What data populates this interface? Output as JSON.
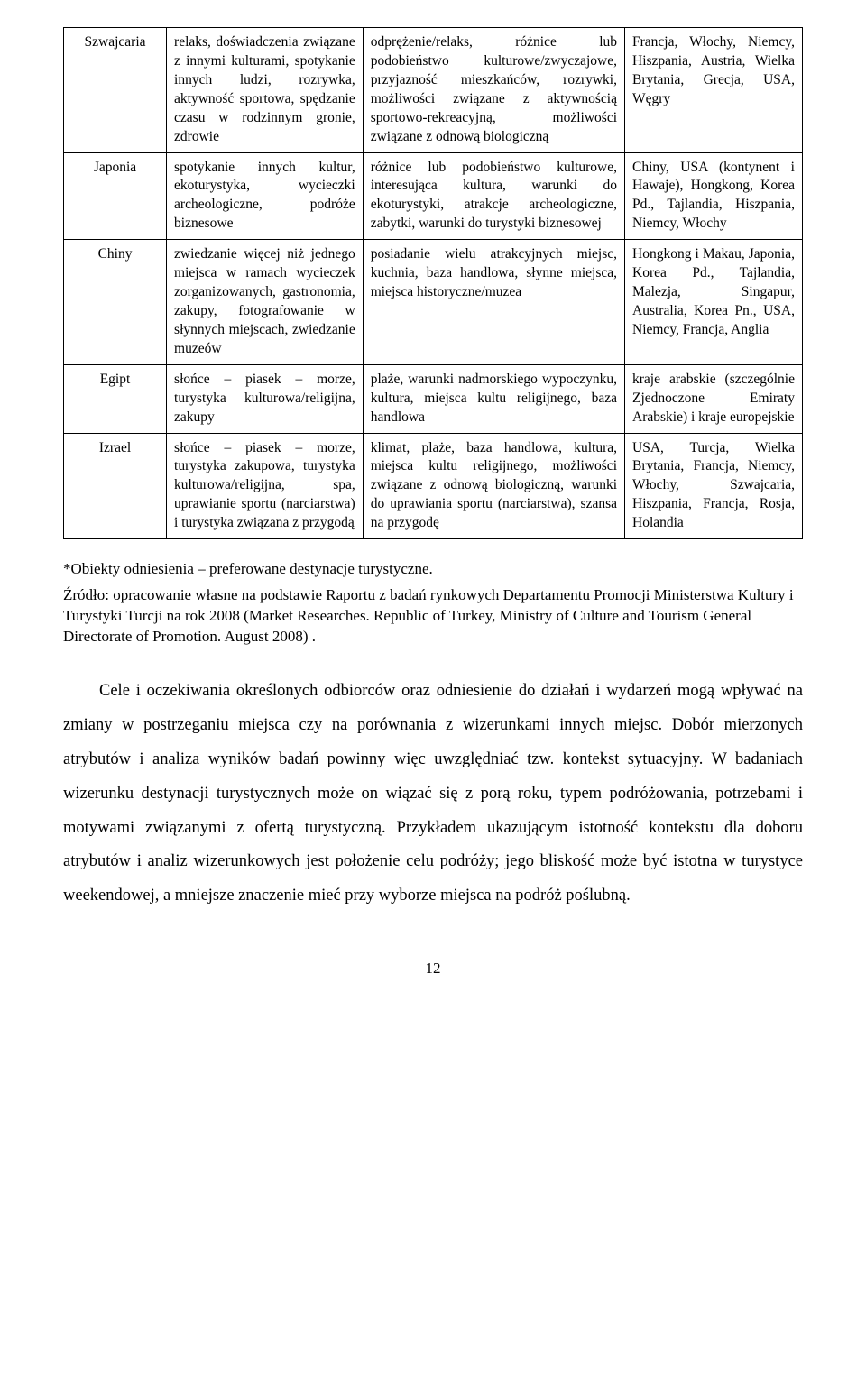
{
  "table": {
    "rows": [
      {
        "country": "Szwajcaria",
        "c2": "relaks, doświadczenia związane z innymi kulturami, spotykanie innych ludzi, rozrywka, aktywność sportowa, spędzanie czasu w rodzinnym gronie, zdrowie",
        "c3": "odprężenie/relaks, różnice lub podobieństwo kulturowe/zwyczajowe, przyjazność mieszkańców, rozrywki, możliwości związane z aktywnością sportowo-rekreacyjną, możliwości związane z odnową biologiczną",
        "c4": "Francja, Włochy, Niemcy, Hiszpania, Austria, Wielka Brytania, Grecja, USA, Węgry"
      },
      {
        "country": "Japonia",
        "c2": "spotykanie innych kultur, ekoturystyka, wycieczki archeologiczne, podróże biznesowe",
        "c3": "różnice lub podobieństwo kulturowe, interesująca kultura, warunki do ekoturystyki, atrakcje archeologiczne, zabytki, warunki do turystyki biznesowej",
        "c4": "Chiny, USA (kontynent i Hawaje), Hongkong, Korea Pd., Tajlandia, Hiszpania, Niemcy, Włochy"
      },
      {
        "country": "Chiny",
        "c2": "zwiedzanie więcej niż jednego miejsca w ramach wycieczek zorganizowanych, gastronomia, zakupy, fotografowanie w słynnych miejscach, zwiedzanie muzeów",
        "c3": "posiadanie wielu atrakcyjnych miejsc, kuchnia, baza handlowa, słynne miejsca, miejsca historyczne/muzea",
        "c4": "Hongkong i Makau, Japonia, Korea Pd., Tajlandia, Malezja, Singapur, Australia, Korea Pn., USA, Niemcy, Francja, Anglia"
      },
      {
        "country": "Egipt",
        "c2": "słońce – piasek – morze, turystyka kulturowa/religijna, zakupy",
        "c3": "plaże, warunki nadmorskiego wypoczynku, kultura, miejsca kultu religijnego, baza handlowa",
        "c4": "kraje arabskie (szczególnie Zjednoczone Emiraty Arabskie) i kraje europejskie"
      },
      {
        "country": "Izrael",
        "c2": "słońce – piasek – morze, turystyka zakupowa, turystyka kulturowa/religijna, spa, uprawianie sportu (narciarstwa) i turystyka związana z przygodą",
        "c3": "klimat, plaże, baza handlowa, kultura, miejsca kultu religijnego, możliwości związane z odnową biologiczną, warunki do uprawiania sportu (narciarstwa), szansa na przygodę",
        "c4": "USA, Turcja, Wielka Brytania, Francja, Niemcy, Włochy, Szwajcaria, Hiszpania, Francja, Rosja, Holandia"
      }
    ]
  },
  "note": "*Obiekty odniesienia – preferowane destynacje turystyczne.",
  "source": "Źródło: opracowanie własne na podstawie Raportu z badań rynkowych Departamentu Promocji Ministerstwa Kultury i Turystyki Turcji na rok 2008 (Market Researches. Republic of Turkey, Ministry of Culture and Tourism General Directorate of Promotion. August 2008) .",
  "body": "Cele i oczekiwania określonych odbiorców oraz odniesienie do działań i wydarzeń mogą wpływać na zmiany w postrzeganiu miejsca czy na porównania z wizerunkami innych miejsc. Dobór mierzonych atrybutów i analiza wyników badań powinny więc uwzględniać tzw. kontekst sytuacyjny. W badaniach wizerunku destynacji turystycznych może on wiązać się z porą roku, typem podróżowania, potrzebami i motywami związanymi z ofertą turystyczną. Przykładem ukazującym istotność kontekstu dla doboru atrybutów i analiz wizerunkowych jest położenie celu podróży; jego bliskość może być istotna w turystyce weekendowej, a mniejsze znaczenie mieć przy wyborze miejsca na podróż poślubną.",
  "pagenum": "12"
}
